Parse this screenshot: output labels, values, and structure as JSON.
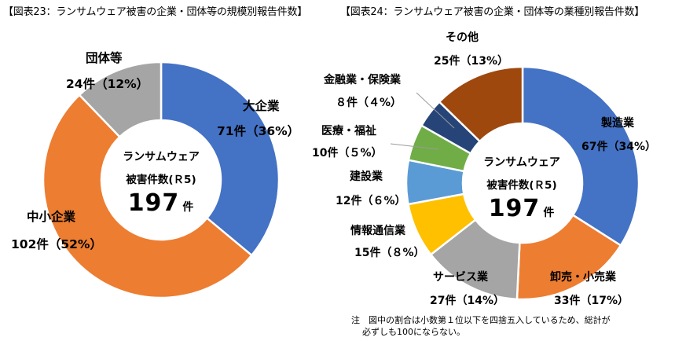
{
  "chart_data": [
    {
      "type": "pie",
      "title": "【図表23：ランサムウェア被害の企業・団体等の規模別報告件数】",
      "center_text": [
        "ランサムウェア",
        "被害件数(Ｒ5)",
        "197",
        "件"
      ],
      "slices": [
        {
          "name": "大企業",
          "value": 71,
          "label": "71件（36%）",
          "color": "#4472C4"
        },
        {
          "name": "中小企業",
          "value": 102,
          "label": "102件（52%）",
          "color": "#ED7D31"
        },
        {
          "name": "団体等",
          "value": 24,
          "label": "24件（12%）",
          "color": "#A5A5A5"
        }
      ]
    },
    {
      "type": "pie",
      "title": "【図表24：ランサムウェア被害の企業・団体等の業種別報告件数】",
      "center_text": [
        "ランサムウェア",
        "被害件数(Ｒ5)",
        "197",
        "件"
      ],
      "slices": [
        {
          "name": "製造業",
          "value": 67,
          "label": "67件（34%）",
          "color": "#4472C4"
        },
        {
          "name": "卸売・小売業",
          "value": 33,
          "label": "33件（17%）",
          "color": "#ED7D31"
        },
        {
          "name": "サービス業",
          "value": 27,
          "label": "27件（14%）",
          "color": "#A5A5A5"
        },
        {
          "name": "情報通信業",
          "value": 15,
          "label": "15件（８%）",
          "color": "#FFC000"
        },
        {
          "name": "建設業",
          "value": 12,
          "label": "12件（６%）",
          "color": "#5B9BD5"
        },
        {
          "name": "医療・福祉",
          "value": 10,
          "label": "10件（５%）",
          "color": "#70AD47"
        },
        {
          "name": "金融業・保険業",
          "value": 8,
          "label": "８件（４%）",
          "color": "#264478"
        },
        {
          "name": "その他",
          "value": 25,
          "label": "25件（13%）",
          "color": "#9E480E"
        }
      ]
    }
  ],
  "note": [
    "注　図中の割合は小数第１位以下を四捨五入しているため、総計が",
    "必ずしも100にならない。"
  ]
}
